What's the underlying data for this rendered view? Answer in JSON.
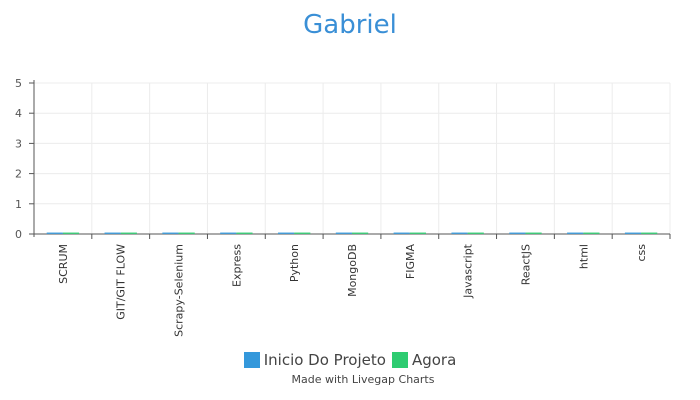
{
  "chart_data": {
    "type": "bar",
    "title": "Gabriel",
    "categories": [
      "SCRUM",
      "GIT/GIT FLOW",
      "Scrapy-Selenium",
      "Express",
      "Python",
      "MongoDB",
      "FIGMA",
      "Javascript",
      "ReactJS",
      "html",
      "css"
    ],
    "series": [
      {
        "name": "Inicio Do Projeto",
        "color": "#3498db",
        "values": [
          0,
          0,
          0,
          0,
          0,
          0,
          0,
          0,
          0,
          0,
          0
        ]
      },
      {
        "name": "Agora",
        "color": "#2ecc71",
        "values": [
          0,
          0,
          0,
          0,
          0,
          0,
          0,
          0,
          0,
          0,
          0
        ]
      }
    ],
    "yticks": [
      "0",
      "1",
      "2",
      "3",
      "4",
      "5"
    ],
    "ylim": [
      0,
      5
    ],
    "grid": true,
    "legend": "bottom-center"
  },
  "credit": "Made with Livegap Charts"
}
